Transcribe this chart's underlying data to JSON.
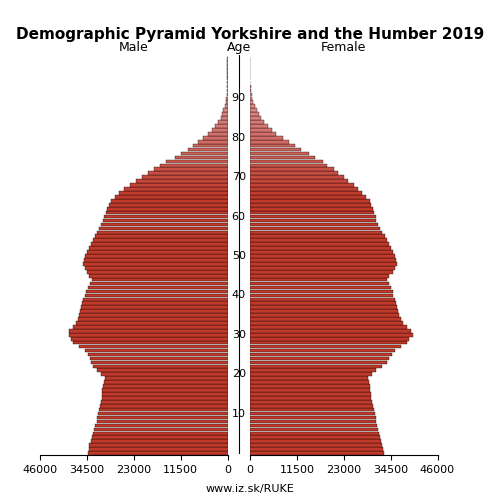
{
  "title": "Demographic Pyramid Yorkshire and the Humber 2019",
  "male_label": "Male",
  "female_label": "Female",
  "age_label": "Age",
  "source": "www.iz.sk/RUKE",
  "xlim": 46000,
  "ages": [
    0,
    1,
    2,
    3,
    4,
    5,
    6,
    7,
    8,
    9,
    10,
    11,
    12,
    13,
    14,
    15,
    16,
    17,
    18,
    19,
    20,
    21,
    22,
    23,
    24,
    25,
    26,
    27,
    28,
    29,
    30,
    31,
    32,
    33,
    34,
    35,
    36,
    37,
    38,
    39,
    40,
    41,
    42,
    43,
    44,
    45,
    46,
    47,
    48,
    49,
    50,
    51,
    52,
    53,
    54,
    55,
    56,
    57,
    58,
    59,
    60,
    61,
    62,
    63,
    64,
    65,
    66,
    67,
    68,
    69,
    70,
    71,
    72,
    73,
    74,
    75,
    76,
    77,
    78,
    79,
    80,
    81,
    82,
    83,
    84,
    85,
    86,
    87,
    88,
    89,
    90,
    91,
    92,
    93,
    94,
    95,
    96,
    97,
    98,
    99,
    100
  ],
  "male": [
    34200,
    34100,
    33900,
    33500,
    33200,
    33000,
    32800,
    32500,
    32100,
    32000,
    31800,
    31500,
    31300,
    31100,
    30900,
    30800,
    30700,
    30600,
    30200,
    30100,
    31000,
    32000,
    33000,
    33500,
    33800,
    34200,
    35000,
    36500,
    37800,
    38500,
    39000,
    38800,
    38000,
    37200,
    36800,
    36500,
    36200,
    36000,
    35800,
    35500,
    35000,
    34800,
    34200,
    33800,
    33200,
    34000,
    34500,
    35000,
    35500,
    35200,
    35000,
    34500,
    34000,
    33500,
    33000,
    32500,
    32000,
    31500,
    31000,
    30500,
    30200,
    29800,
    29500,
    29000,
    28500,
    27500,
    26500,
    25500,
    24000,
    22500,
    21000,
    19500,
    18000,
    16500,
    15000,
    13000,
    11500,
    9800,
    8500,
    7200,
    6000,
    4800,
    3800,
    3000,
    2300,
    1700,
    1300,
    1000,
    700,
    450,
    280,
    160,
    90,
    50,
    25,
    12,
    6,
    3,
    1,
    1,
    1
  ],
  "female": [
    32800,
    32600,
    32400,
    32100,
    31900,
    31700,
    31500,
    31200,
    31000,
    30800,
    30600,
    30400,
    30200,
    30000,
    29800,
    29600,
    29500,
    29400,
    29100,
    29000,
    30000,
    31000,
    32500,
    33500,
    34000,
    34800,
    35500,
    37000,
    38500,
    39000,
    40000,
    39500,
    38500,
    37500,
    37000,
    36500,
    36200,
    36000,
    35800,
    35500,
    35200,
    35000,
    34500,
    34000,
    33500,
    34000,
    35000,
    35500,
    36000,
    35800,
    35500,
    35000,
    34500,
    34000,
    33500,
    33000,
    32500,
    32000,
    31500,
    31000,
    30800,
    30500,
    30200,
    29800,
    29500,
    28500,
    27500,
    26500,
    25500,
    24000,
    23000,
    21500,
    20500,
    19000,
    18000,
    16000,
    14500,
    12500,
    11000,
    9500,
    8000,
    6500,
    5300,
    4300,
    3400,
    2700,
    2100,
    1600,
    1200,
    850,
    600,
    400,
    260,
    170,
    100,
    55,
    28,
    14,
    6,
    3,
    1
  ],
  "color_young": "#c0392b",
  "color_old": "#e8b4b8",
  "edge_color": "black",
  "background_color": "white",
  "age_color_boundary": 65,
  "xtick_labels": [
    "46000",
    "34500",
    "23000",
    "11500",
    "0"
  ],
  "xtick_values": [
    46000,
    34500,
    23000,
    11500,
    0
  ],
  "ytick_ages": [
    10,
    20,
    30,
    40,
    50,
    60,
    70,
    80,
    90
  ],
  "title_fontsize": 11,
  "label_fontsize": 9,
  "tick_fontsize": 8,
  "source_fontsize": 8
}
